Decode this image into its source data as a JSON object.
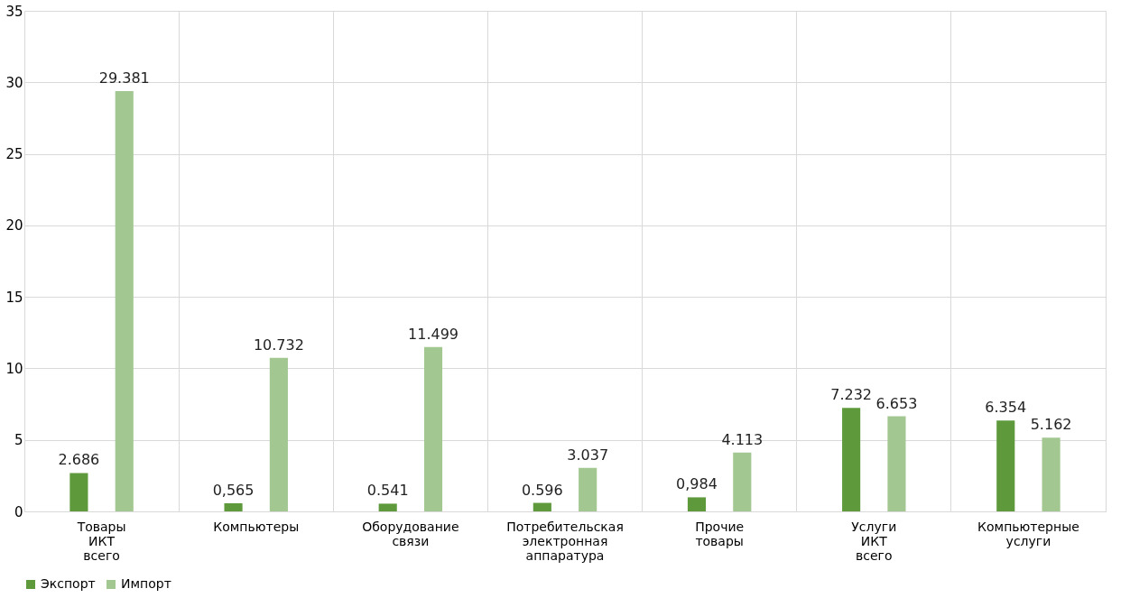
{
  "chart_data": {
    "type": "bar",
    "categories": [
      "Товары ИКТ всего",
      "Компьютеры",
      "Оборудование связи",
      "Потребительская электронная аппаратура",
      "Прочие товары",
      "Услуги ИКТ всего",
      "Компьютерные услуги"
    ],
    "series": [
      {
        "name": "Экспорт",
        "color": "#5e9a3c",
        "values": [
          2.686,
          0.565,
          0.541,
          0.596,
          0.984,
          7.232,
          6.354
        ],
        "value_labels": [
          "2.686",
          "0,565",
          "0.541",
          "0.596",
          "0,984",
          "7.232",
          "6.354"
        ]
      },
      {
        "name": "Импорт",
        "color": "#a3c791",
        "values": [
          29.381,
          10.732,
          11.499,
          3.037,
          4.113,
          6.653,
          5.162
        ],
        "value_labels": [
          "29.381",
          "10.732",
          "11.499",
          "3.037",
          "4.113",
          "6.653",
          "5.162"
        ]
      }
    ],
    "ylim": [
      0,
      35
    ],
    "yticks": [
      0,
      5,
      10,
      15,
      20,
      25,
      30,
      35
    ],
    "grid": true,
    "legend": "bottom"
  }
}
